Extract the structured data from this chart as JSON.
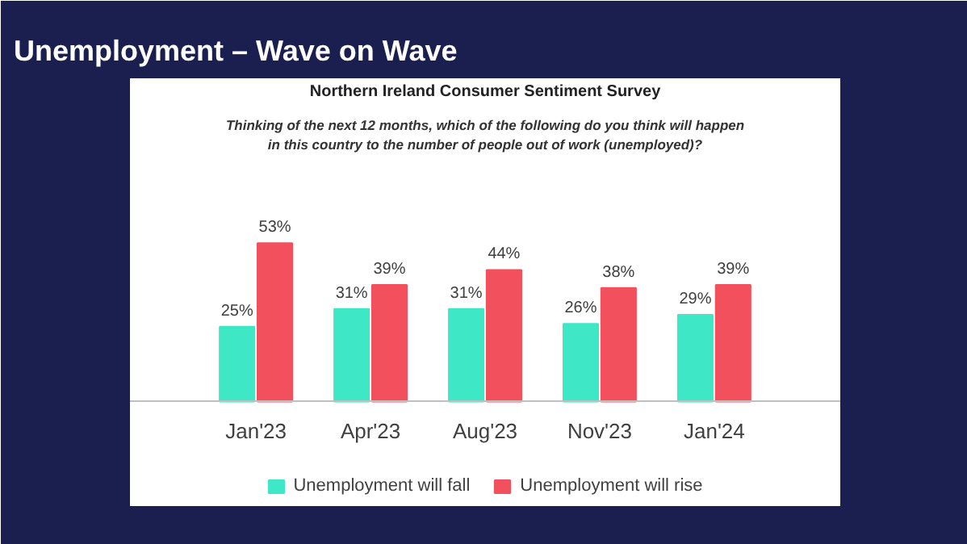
{
  "chart_data": {
    "type": "bar",
    "title": "Unemployment – Wave on Wave",
    "subtitle": "Northern Ireland Consumer Sentiment Survey",
    "annotations": [
      "Thinking of the next 12 months, which of the following do you think will happen in this country to the number of people out of work (unemployed)?"
    ],
    "categories": [
      "Jan'23",
      "Apr'23",
      "Aug'23",
      "Nov'23",
      "Jan'24"
    ],
    "series": [
      {
        "name": "Unemployment will fall",
        "color": "#3ee8c6",
        "values": [
          25,
          31,
          31,
          26,
          29
        ],
        "value_labels": [
          "25%",
          "31%",
          "31%",
          "26%",
          "29%"
        ]
      },
      {
        "name": "Unemployment will rise",
        "color": "#f2505d",
        "values": [
          53,
          39,
          44,
          38,
          39
        ],
        "value_labels": [
          "53%",
          "39%",
          "44%",
          "38%",
          "39%"
        ]
      }
    ],
    "tick_labels": "x",
    "legend": "bottom"
  }
}
